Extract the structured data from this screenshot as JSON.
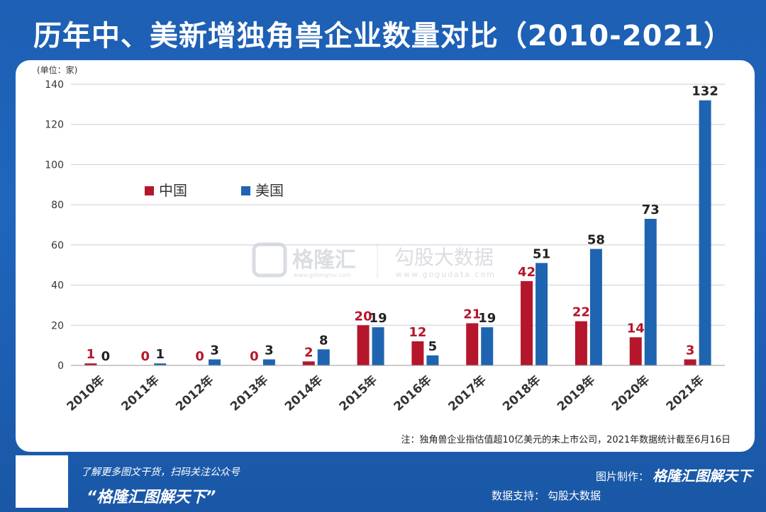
{
  "title": "历年中、美新增独角兽企业数量对比（2010-2021）",
  "chart_data": {
    "type": "bar",
    "unit_label": "(单位：家)",
    "categories": [
      "2010年",
      "2011年",
      "2012年",
      "2013年",
      "2014年",
      "2015年",
      "2016年",
      "2017年",
      "2018年",
      "2019年",
      "2020年",
      "2021年"
    ],
    "series": [
      {
        "name": "中国",
        "color": "#b5162b",
        "values": [
          1,
          0,
          0,
          0,
          2,
          20,
          12,
          21,
          42,
          22,
          14,
          3
        ]
      },
      {
        "name": "美国",
        "color": "#1f64b0",
        "values": [
          0,
          1,
          3,
          3,
          8,
          19,
          5,
          19,
          51,
          58,
          73,
          132
        ]
      }
    ],
    "ylim": [
      0,
      140
    ],
    "yticks": [
      0,
      20,
      40,
      60,
      80,
      100,
      120,
      140
    ],
    "grid": true,
    "legend": "upper-left",
    "note": "注：独角兽企业指估值超10亿美元的未上市公司，2021年数据统计截至6月16日"
  },
  "watermarks": {
    "left_brand": "格隆汇",
    "left_url": "www.gelonghui.com",
    "right_brand": "勾股大数据",
    "right_url": "www.gogudata.com"
  },
  "footer": {
    "promo": "了解更多图文干货，扫码关注公众号",
    "slogan": "“格隆汇图解天下”",
    "credit_label": "图片制作：",
    "credit_brand": "格隆汇图解天下",
    "support_label": "数据支持：",
    "support_value": "勾股大数据"
  }
}
